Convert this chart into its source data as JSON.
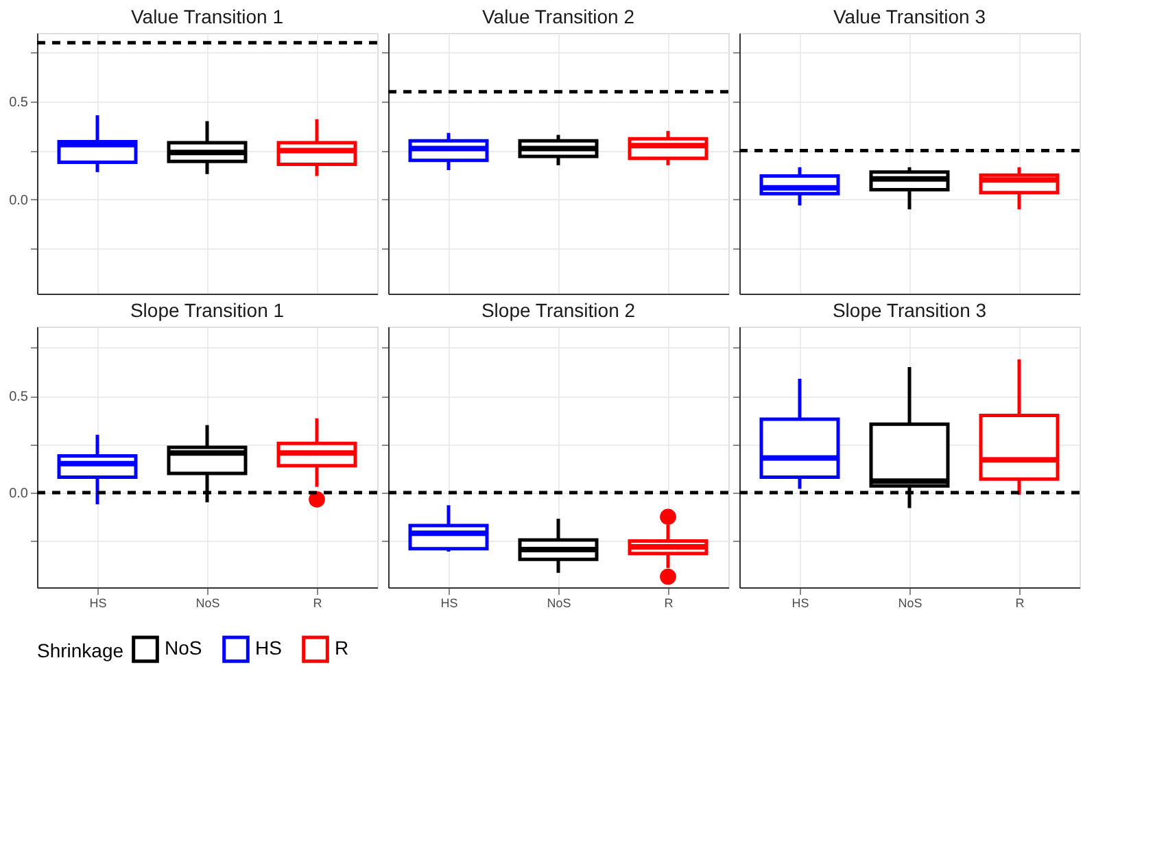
{
  "chart_data": [
    {
      "type": "box",
      "title": "Value Transition 1",
      "categories": [
        "HS",
        "NoS",
        "R"
      ],
      "ylim": [
        -0.48,
        0.85
      ],
      "yticks": [
        {
          "value": -0.25,
          "label": null
        },
        {
          "value": 0,
          "label": "0.0"
        },
        {
          "value": 0.25,
          "label": null
        },
        {
          "value": 0.5,
          "label": "0.5"
        },
        {
          "value": 0.75,
          "label": null
        }
      ],
      "grid": true,
      "tick_labels": "y",
      "legend": "bottom",
      "legend_title": "Shrinkage",
      "ref_lines": [
        {
          "axis": "y",
          "value": 0.8,
          "line_style": "dashed",
          "color": "#000000"
        }
      ],
      "series": [
        {
          "name": "NoS",
          "color": "#000000",
          "boxes": [
            null,
            {
              "low": 0.13,
              "q1": 0.195,
              "median": 0.24,
              "q3": 0.29,
              "high": 0.4
            },
            null
          ]
        },
        {
          "name": "HS",
          "color": "#0000ff",
          "boxes": [
            {
              "low": 0.14,
              "q1": 0.19,
              "median": 0.28,
              "q3": 0.295,
              "high": 0.43
            },
            null,
            null
          ]
        },
        {
          "name": "R",
          "color": "#ff0000",
          "boxes": [
            null,
            null,
            {
              "low": 0.12,
              "q1": 0.18,
              "median": 0.25,
              "q3": 0.29,
              "high": 0.41
            }
          ]
        }
      ]
    },
    {
      "type": "box",
      "title": "Value Transition 2",
      "categories": [
        "HS",
        "NoS",
        "R"
      ],
      "ylim": [
        -0.48,
        0.85
      ],
      "yticks": [
        {
          "value": -0.25,
          "label": null
        },
        {
          "value": 0,
          "label": "0.0"
        },
        {
          "value": 0.25,
          "label": null
        },
        {
          "value": 0.5,
          "label": "0.5"
        },
        {
          "value": 0.75,
          "label": null
        }
      ],
      "grid": true,
      "tick_labels": false,
      "legend": "bottom",
      "ref_lines": [
        {
          "axis": "y",
          "value": 0.55,
          "line_style": "dashed",
          "color": "#000000"
        }
      ],
      "series": [
        {
          "name": "NoS",
          "color": "#000000",
          "boxes": [
            null,
            {
              "low": 0.175,
              "q1": 0.22,
              "median": 0.26,
              "q3": 0.3,
              "high": 0.33
            },
            null
          ]
        },
        {
          "name": "HS",
          "color": "#0000ff",
          "boxes": [
            {
              "low": 0.15,
              "q1": 0.2,
              "median": 0.26,
              "q3": 0.3,
              "high": 0.34
            },
            null,
            null
          ]
        },
        {
          "name": "R",
          "color": "#ff0000",
          "boxes": [
            null,
            null,
            {
              "low": 0.175,
              "q1": 0.21,
              "median": 0.275,
              "q3": 0.31,
              "high": 0.35
            }
          ]
        }
      ]
    },
    {
      "type": "box",
      "title": "Value Transition 3",
      "categories": [
        "HS",
        "NoS",
        "R"
      ],
      "ylim": [
        -0.48,
        0.85
      ],
      "yticks": [
        {
          "value": -0.25,
          "label": null
        },
        {
          "value": 0,
          "label": "0.0"
        },
        {
          "value": 0.25,
          "label": null
        },
        {
          "value": 0.5,
          "label": "0.5"
        },
        {
          "value": 0.75,
          "label": null
        }
      ],
      "grid": true,
      "tick_labels": false,
      "legend": "bottom",
      "ref_lines": [
        {
          "axis": "y",
          "value": 0.25,
          "line_style": "dashed",
          "color": "#000000"
        }
      ],
      "series": [
        {
          "name": "NoS",
          "color": "#000000",
          "boxes": [
            null,
            {
              "low": -0.05,
              "q1": 0.05,
              "median": 0.105,
              "q3": 0.14,
              "high": 0.165
            },
            null
          ]
        },
        {
          "name": "HS",
          "color": "#0000ff",
          "boxes": [
            {
              "low": -0.03,
              "q1": 0.03,
              "median": 0.06,
              "q3": 0.12,
              "high": 0.165
            },
            null,
            null
          ]
        },
        {
          "name": "R",
          "color": "#ff0000",
          "boxes": [
            null,
            null,
            {
              "low": -0.05,
              "q1": 0.035,
              "median": 0.1,
              "q3": 0.125,
              "high": 0.165
            }
          ]
        }
      ]
    },
    {
      "type": "box",
      "title": "Slope Transition 1",
      "categories": [
        "HS",
        "NoS",
        "R"
      ],
      "ylim": [
        -0.49,
        0.86
      ],
      "yticks": [
        {
          "value": -0.25,
          "label": null
        },
        {
          "value": 0,
          "label": "0.0"
        },
        {
          "value": 0.25,
          "label": null
        },
        {
          "value": 0.5,
          "label": "0.5"
        },
        {
          "value": 0.75,
          "label": null
        }
      ],
      "grid": true,
      "legend": "bottom",
      "ref_lines": [
        {
          "axis": "y",
          "value": 0,
          "line_style": "dashed",
          "color": "#000000"
        }
      ],
      "series": [
        {
          "name": "NoS",
          "color": "#000000",
          "boxes": [
            null,
            {
              "low": -0.05,
              "q1": 0.1,
              "median": 0.205,
              "q3": 0.235,
              "high": 0.35
            },
            null
          ]
        },
        {
          "name": "HS",
          "color": "#0000ff",
          "boxes": [
            {
              "low": -0.06,
              "q1": 0.08,
              "median": 0.15,
              "q3": 0.19,
              "high": 0.3
            },
            null,
            null
          ]
        },
        {
          "name": "R",
          "color": "#ff0000",
          "boxes": [
            null,
            null,
            {
              "low": 0.03,
              "q1": 0.14,
              "median": 0.205,
              "q3": 0.255,
              "high": 0.385,
              "outliers": [
                -0.035
              ]
            }
          ]
        }
      ]
    },
    {
      "type": "box",
      "title": "Slope Transition 2",
      "categories": [
        "HS",
        "NoS",
        "R"
      ],
      "ylim": [
        -0.49,
        0.86
      ],
      "yticks": [
        {
          "value": -0.25,
          "label": null
        },
        {
          "value": 0,
          "label": "0.0"
        },
        {
          "value": 0.25,
          "label": null
        },
        {
          "value": 0.5,
          "label": "0.5"
        },
        {
          "value": 0.75,
          "label": null
        }
      ],
      "grid": true,
      "tick_labels": "x",
      "legend": "bottom",
      "ref_lines": [
        {
          "axis": "y",
          "value": 0,
          "line_style": "dashed",
          "color": "#000000"
        }
      ],
      "series": [
        {
          "name": "NoS",
          "color": "#000000",
          "boxes": [
            null,
            {
              "low": -0.415,
              "q1": -0.345,
              "median": -0.295,
              "q3": -0.245,
              "high": -0.135
            },
            null
          ]
        },
        {
          "name": "HS",
          "color": "#0000ff",
          "boxes": [
            {
              "low": -0.305,
              "q1": -0.29,
              "median": -0.21,
              "q3": -0.17,
              "high": -0.065
            },
            null,
            null
          ]
        },
        {
          "name": "R",
          "color": "#ff0000",
          "boxes": [
            null,
            null,
            {
              "low": -0.39,
              "q1": -0.315,
              "median": -0.28,
              "q3": -0.25,
              "high": -0.165,
              "outliers": [
                -0.125,
                -0.435
              ]
            }
          ]
        }
      ]
    },
    {
      "type": "box",
      "title": "Slope Transition 3",
      "categories": [
        "HS",
        "NoS",
        "R"
      ],
      "ylim": [
        -0.49,
        0.86
      ],
      "yticks": [
        {
          "value": -0.25,
          "label": null
        },
        {
          "value": 0,
          "label": "0.0"
        },
        {
          "value": 0.25,
          "label": null
        },
        {
          "value": 0.5,
          "label": "0.5"
        },
        {
          "value": 0.75,
          "label": null
        }
      ],
      "grid": true,
      "tick_labels": "x",
      "legend": "bottom",
      "ref_lines": [
        {
          "axis": "y",
          "value": 0,
          "line_style": "dashed",
          "color": "#000000"
        }
      ],
      "series": [
        {
          "name": "NoS",
          "color": "#000000",
          "boxes": [
            null,
            {
              "low": -0.08,
              "q1": 0.035,
              "median": 0.06,
              "q3": 0.355,
              "high": 0.65
            },
            null
          ]
        },
        {
          "name": "HS",
          "color": "#0000ff",
          "boxes": [
            {
              "low": 0.02,
              "q1": 0.08,
              "median": 0.18,
              "q3": 0.38,
              "high": 0.59
            },
            null,
            null
          ]
        },
        {
          "name": "R",
          "color": "#ff0000",
          "boxes": [
            null,
            null,
            {
              "low": -0.01,
              "q1": 0.07,
              "median": 0.17,
              "q3": 0.4,
              "high": 0.69
            }
          ]
        }
      ]
    }
  ]
}
